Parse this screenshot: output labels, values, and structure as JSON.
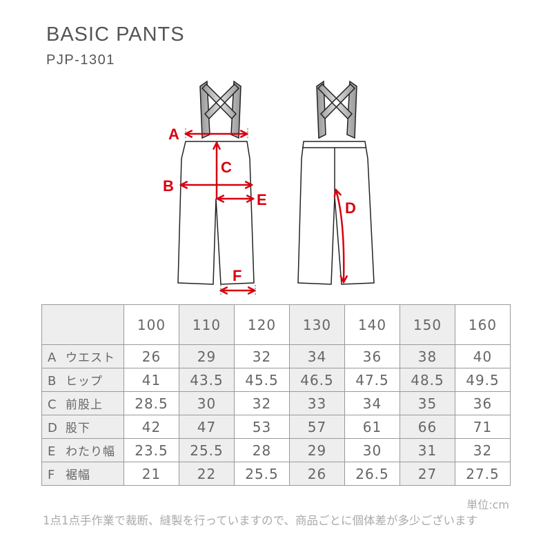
{
  "header": {
    "title": "BASIC PANTS",
    "code": "PJP-1301"
  },
  "colors": {
    "accent": "#d7000f",
    "text": "#666666",
    "shade": "#eeeeee"
  },
  "diagram": {
    "labels": [
      "A",
      "B",
      "C",
      "D",
      "E",
      "F"
    ]
  },
  "table": {
    "sizes": [
      "100",
      "110",
      "120",
      "130",
      "140",
      "150",
      "160"
    ],
    "rows": [
      {
        "letter": "A",
        "name": "ウエスト",
        "values": [
          "26",
          "29",
          "32",
          "34",
          "36",
          "38",
          "40"
        ]
      },
      {
        "letter": "B",
        "name": "ヒップ",
        "values": [
          "41",
          "43.5",
          "45.5",
          "46.5",
          "47.5",
          "48.5",
          "49.5"
        ]
      },
      {
        "letter": "C",
        "name": "前股上",
        "values": [
          "28.5",
          "30",
          "32",
          "33",
          "34",
          "35",
          "36"
        ]
      },
      {
        "letter": "D",
        "name": "股下",
        "values": [
          "42",
          "47",
          "53",
          "57",
          "61",
          "66",
          "71"
        ]
      },
      {
        "letter": "E",
        "name": "わたり幅",
        "values": [
          "23.5",
          "25.5",
          "28",
          "29",
          "30",
          "31",
          "32"
        ]
      },
      {
        "letter": "F",
        "name": "裾幅",
        "values": [
          "21",
          "22",
          "25.5",
          "26",
          "26.5",
          "27",
          "27.5"
        ]
      }
    ]
  },
  "footer": {
    "unit": "単位:cm",
    "note": "1点1点手作業で裁断、縫製を行っていますので、商品ごとに個体差が多少ございます"
  }
}
